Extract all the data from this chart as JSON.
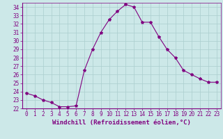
{
  "hours": [
    0,
    1,
    2,
    3,
    4,
    5,
    6,
    7,
    8,
    9,
    10,
    11,
    12,
    13,
    14,
    15,
    16,
    17,
    18,
    19,
    20,
    21,
    22,
    23
  ],
  "values": [
    23.8,
    23.5,
    23.0,
    22.7,
    22.2,
    22.2,
    22.3,
    26.5,
    29.0,
    31.0,
    32.5,
    33.5,
    34.3,
    34.0,
    32.2,
    32.2,
    30.5,
    29.0,
    28.0,
    26.5,
    26.0,
    25.5,
    25.1,
    25.1
  ],
  "line_color": "#800080",
  "marker": "*",
  "marker_size": 3,
  "bg_color": "#cce8e8",
  "grid_color": "#aacece",
  "xlabel": "Windchill (Refroidissement éolien,°C)",
  "ylim": [
    22,
    34.5
  ],
  "ytick_min": 22,
  "ytick_max": 34,
  "xlim": [
    -0.5,
    23.5
  ],
  "xticks": [
    0,
    1,
    2,
    3,
    4,
    5,
    6,
    7,
    8,
    9,
    10,
    11,
    12,
    13,
    14,
    15,
    16,
    17,
    18,
    19,
    20,
    21,
    22,
    23
  ],
  "tick_label_fontsize": 5.5,
  "xlabel_fontsize": 6.5,
  "spine_color": "#800080",
  "axis_bg": "#cce8e8",
  "fig_bg": "#cce8e8"
}
